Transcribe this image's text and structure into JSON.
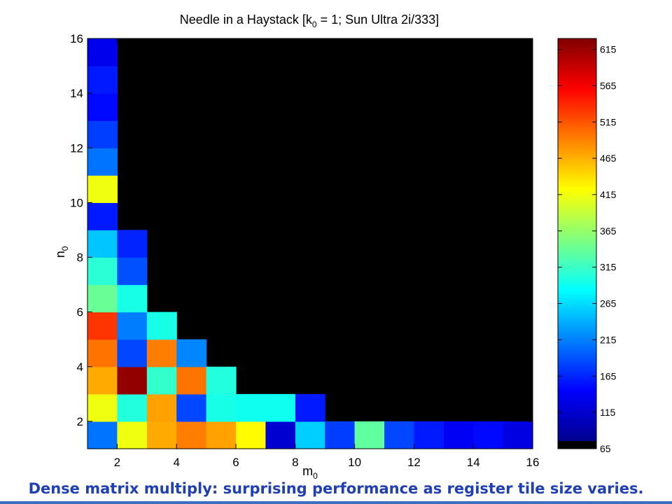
{
  "caption": "Dense matrix multiply: surprising performance as register tile size varies.",
  "chart_data": {
    "type": "heatmap",
    "title": "Needle in a Haystack [k0 = 1; Sun Ultra 2i/333]",
    "title_parts": {
      "pre": "Needle in a Haystack [k",
      "sub": "0",
      "post": " = 1; Sun Ultra 2i/333]"
    },
    "xlabel": {
      "base": "m",
      "sub": "0"
    },
    "ylabel": {
      "base": "n",
      "sub": "0"
    },
    "x_range": [
      1,
      16
    ],
    "y_range": [
      1,
      16
    ],
    "x_ticks": [
      2,
      4,
      6,
      8,
      10,
      12,
      14,
      16
    ],
    "y_ticks": [
      2,
      4,
      6,
      8,
      10,
      12,
      14,
      16
    ],
    "colorbar": {
      "min": 65,
      "max": 630,
      "ticks": [
        65,
        115,
        165,
        215,
        265,
        315,
        365,
        415,
        465,
        515,
        565,
        615
      ]
    },
    "background_value": 65,
    "cells": [
      {
        "m": 1,
        "n": 1,
        "v": 200
      },
      {
        "m": 2,
        "n": 1,
        "v": 410
      },
      {
        "m": 3,
        "n": 1,
        "v": 465
      },
      {
        "m": 4,
        "n": 1,
        "v": 490
      },
      {
        "m": 5,
        "n": 1,
        "v": 470
      },
      {
        "m": 6,
        "n": 1,
        "v": 420
      },
      {
        "m": 7,
        "n": 1,
        "v": 110
      },
      {
        "m": 8,
        "n": 1,
        "v": 250
      },
      {
        "m": 9,
        "n": 1,
        "v": 170
      },
      {
        "m": 10,
        "n": 1,
        "v": 330
      },
      {
        "m": 11,
        "n": 1,
        "v": 175
      },
      {
        "m": 12,
        "n": 1,
        "v": 150
      },
      {
        "m": 13,
        "n": 1,
        "v": 130
      },
      {
        "m": 14,
        "n": 1,
        "v": 140
      },
      {
        "m": 15,
        "n": 1,
        "v": 120
      },
      {
        "m": 1,
        "n": 2,
        "v": 410
      },
      {
        "m": 2,
        "n": 2,
        "v": 295
      },
      {
        "m": 3,
        "n": 2,
        "v": 470
      },
      {
        "m": 4,
        "n": 2,
        "v": 175
      },
      {
        "m": 5,
        "n": 2,
        "v": 290
      },
      {
        "m": 6,
        "n": 2,
        "v": 285
      },
      {
        "m": 7,
        "n": 2,
        "v": 285
      },
      {
        "m": 8,
        "n": 2,
        "v": 150
      },
      {
        "m": 1,
        "n": 3,
        "v": 465
      },
      {
        "m": 2,
        "n": 3,
        "v": 620
      },
      {
        "m": 3,
        "n": 3,
        "v": 305
      },
      {
        "m": 4,
        "n": 3,
        "v": 495
      },
      {
        "m": 5,
        "n": 3,
        "v": 295
      },
      {
        "m": 1,
        "n": 4,
        "v": 495
      },
      {
        "m": 2,
        "n": 4,
        "v": 175
      },
      {
        "m": 3,
        "n": 4,
        "v": 490
      },
      {
        "m": 4,
        "n": 4,
        "v": 210
      },
      {
        "m": 1,
        "n": 5,
        "v": 530
      },
      {
        "m": 2,
        "n": 5,
        "v": 205
      },
      {
        "m": 3,
        "n": 5,
        "v": 290
      },
      {
        "m": 1,
        "n": 6,
        "v": 335
      },
      {
        "m": 2,
        "n": 6,
        "v": 290
      },
      {
        "m": 1,
        "n": 7,
        "v": 300
      },
      {
        "m": 2,
        "n": 7,
        "v": 180
      },
      {
        "m": 1,
        "n": 8,
        "v": 245
      },
      {
        "m": 2,
        "n": 8,
        "v": 155
      },
      {
        "m": 1,
        "n": 9,
        "v": 150
      },
      {
        "m": 1,
        "n": 10,
        "v": 410
      },
      {
        "m": 1,
        "n": 11,
        "v": 200
      },
      {
        "m": 1,
        "n": 12,
        "v": 170
      },
      {
        "m": 1,
        "n": 13,
        "v": 140
      },
      {
        "m": 1,
        "n": 14,
        "v": 150
      },
      {
        "m": 1,
        "n": 15,
        "v": 125
      }
    ]
  }
}
